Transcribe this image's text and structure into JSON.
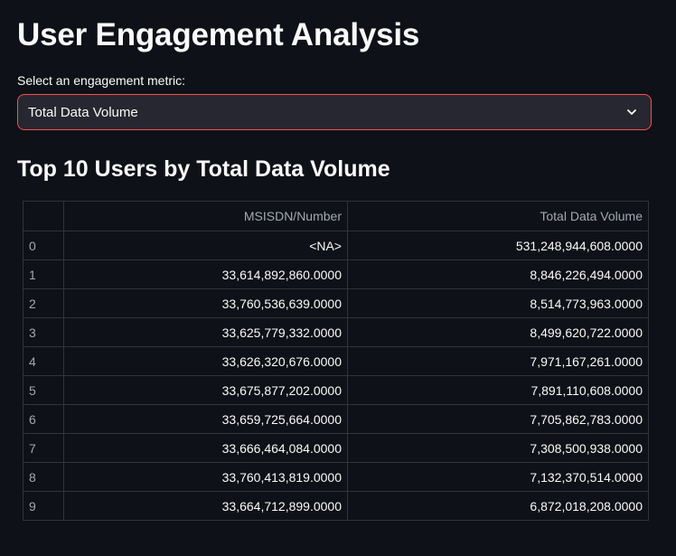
{
  "page": {
    "title": "User Engagement Analysis"
  },
  "metric_select": {
    "label": "Select an engagement metric:",
    "value": "Total Data Volume"
  },
  "section": {
    "title": "Top 10 Users by Total Data Volume"
  },
  "table": {
    "columns": [
      "",
      "MSISDN/Number",
      "Total Data Volume"
    ],
    "rows": [
      {
        "index": "0",
        "msisdn": "<NA>",
        "volume": "531,248,944,608.0000"
      },
      {
        "index": "1",
        "msisdn": "33,614,892,860.0000",
        "volume": "8,846,226,494.0000"
      },
      {
        "index": "2",
        "msisdn": "33,760,536,639.0000",
        "volume": "8,514,773,963.0000"
      },
      {
        "index": "3",
        "msisdn": "33,625,779,332.0000",
        "volume": "8,499,620,722.0000"
      },
      {
        "index": "4",
        "msisdn": "33,626,320,676.0000",
        "volume": "7,971,167,261.0000"
      },
      {
        "index": "5",
        "msisdn": "33,675,877,202.0000",
        "volume": "7,891,110,608.0000"
      },
      {
        "index": "6",
        "msisdn": "33,659,725,664.0000",
        "volume": "7,705,862,783.0000"
      },
      {
        "index": "7",
        "msisdn": "33,666,464,084.0000",
        "volume": "7,308,500,938.0000"
      },
      {
        "index": "8",
        "msisdn": "33,760,413,819.0000",
        "volume": "7,132,370,514.0000"
      },
      {
        "index": "9",
        "msisdn": "33,664,712,899.0000",
        "volume": "6,872,018,208.0000"
      }
    ]
  },
  "colors": {
    "background": "#0e1117",
    "select_border": "#ff4b4b",
    "select_bg": "#262730",
    "grid": "#31333f",
    "muted_text": "#a3a8b4"
  },
  "icons": {
    "select_chevron": "chevron-down-icon"
  }
}
